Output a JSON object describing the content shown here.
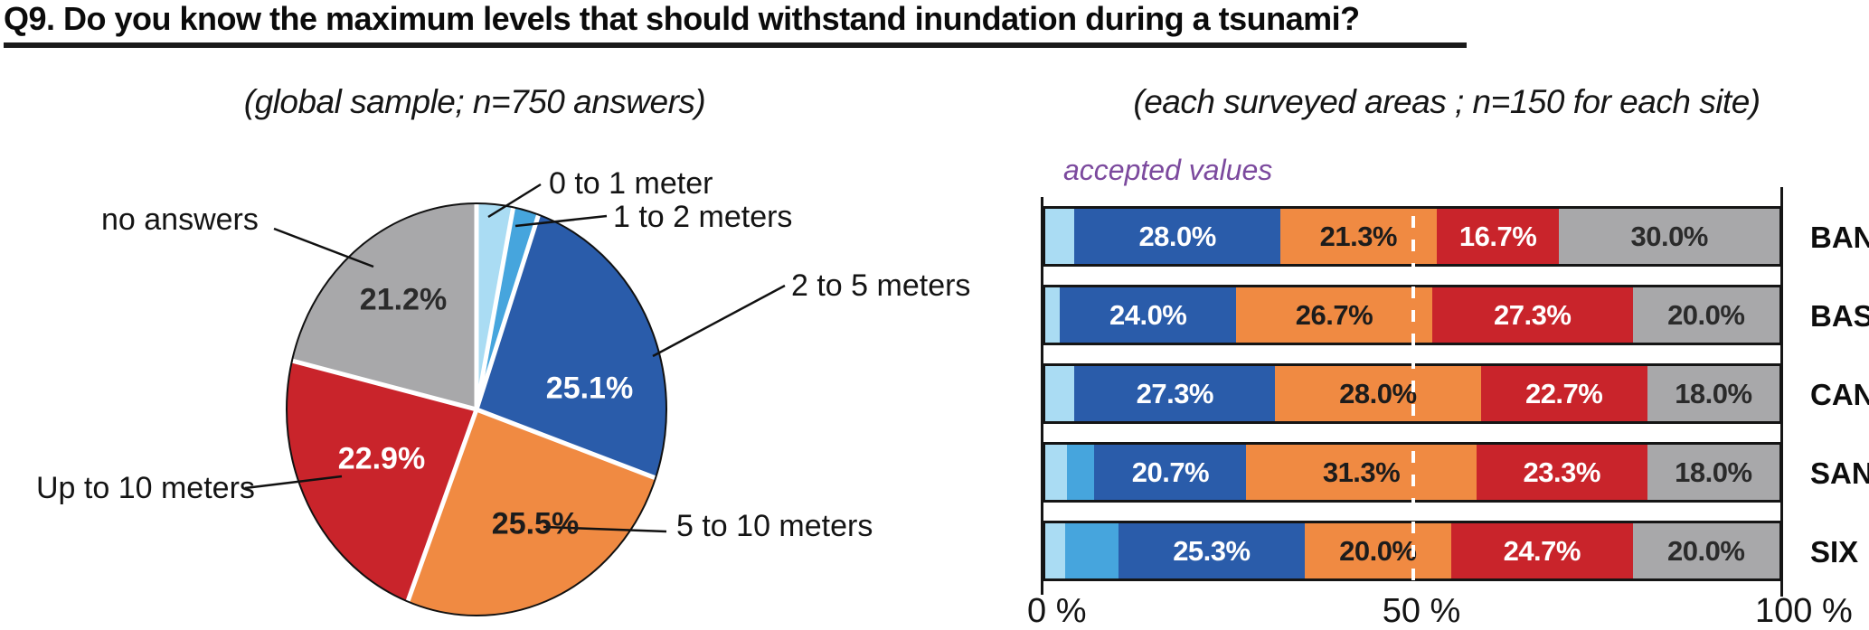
{
  "title": "Q9. Do you know the maximum levels that should withstand inundation during a tsunami?",
  "chart_data": [
    {
      "type": "pie",
      "title": "(global sample; n=750 answers)",
      "direction": "clockwise",
      "start_angle_deg": 0,
      "slices": [
        {
          "label": "0 to 1 meter",
          "value": 3.1,
          "value_estimated": true,
          "color": "#aadcf3",
          "pct_label": ""
        },
        {
          "label": "1 to 2 meters",
          "value": 2.2,
          "value_estimated": true,
          "color": "#46a5dd",
          "pct_label": ""
        },
        {
          "label": "2 to 5 meters",
          "value": 25.1,
          "color": "#2a5caa",
          "pct_label": "25.1%",
          "pct_label_color": "#ffffff"
        },
        {
          "label": "5 to 10 meters",
          "value": 25.5,
          "color": "#f08a42",
          "pct_label": "25.5%",
          "pct_label_color": "#1c1c1c"
        },
        {
          "label": "Up to 10 meters",
          "value": 22.9,
          "color": "#c9242b",
          "pct_label": "22.9%",
          "pct_label_color": "#ffffff"
        },
        {
          "label": "no answers",
          "value": 21.2,
          "color": "#a8a8aa",
          "pct_label": "21.2%",
          "pct_label_color": "#2b2b2b"
        }
      ]
    },
    {
      "type": "bar",
      "variant": "stacked-horizontal",
      "title": "(each surveyed areas ; n=150 for each site)",
      "annotation": "accepted values",
      "annotation_color": "#7c4a9e",
      "categories": [
        "BAN",
        "BAS",
        "CAN",
        "SAN",
        "SIX"
      ],
      "series": [
        {
          "name": "0 to 1 meter",
          "color": "#aadcf3",
          "values": [
            4.0,
            2.0,
            4.0,
            3.0,
            2.7
          ],
          "values_estimated": true,
          "show_labels": false
        },
        {
          "name": "1 to 2 meters",
          "color": "#46a5dd",
          "values": [
            0,
            0,
            0,
            3.7,
            7.3
          ],
          "values_estimated": true,
          "show_labels": false
        },
        {
          "name": "2 to 5 meters",
          "color": "#2a5caa",
          "values": [
            28.0,
            24.0,
            27.3,
            20.7,
            25.3
          ],
          "show_labels": true,
          "label_color": "#ffffff"
        },
        {
          "name": "5 to 10 meters",
          "color": "#f08a42",
          "values": [
            21.3,
            26.7,
            28.0,
            31.3,
            20.0
          ],
          "show_labels": true,
          "label_color": "#1c1c1c"
        },
        {
          "name": "Up to 10 meters",
          "color": "#c9242b",
          "values": [
            16.7,
            27.3,
            22.7,
            23.3,
            24.7
          ],
          "show_labels": true,
          "label_color": "#ffffff"
        },
        {
          "name": "no answers",
          "color": "#a8a8aa",
          "values": [
            30.0,
            20.0,
            18.0,
            18.0,
            20.0
          ],
          "show_labels": true,
          "label_color": "#2b2b2b"
        }
      ],
      "xlim": [
        0,
        100
      ],
      "x_tick_labels": [
        "0 %",
        "50 %",
        "100 %"
      ],
      "reference_line": {
        "x": 50,
        "style": "dashed",
        "color": "#ffffff"
      }
    }
  ]
}
